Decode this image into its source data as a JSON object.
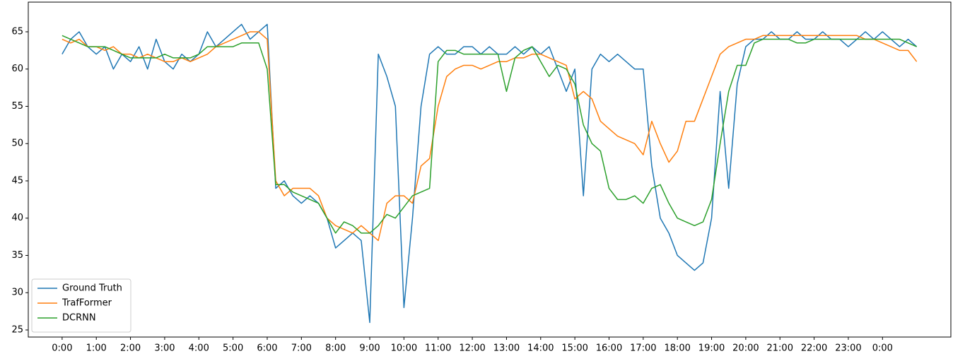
{
  "chart_data": {
    "type": "line",
    "legend": "lower left",
    "x": [
      0,
      0.25,
      0.5,
      0.75,
      1,
      1.25,
      1.5,
      1.75,
      2,
      2.25,
      2.5,
      2.75,
      3,
      3.25,
      3.5,
      3.75,
      4,
      4.25,
      4.5,
      4.75,
      5,
      5.25,
      5.5,
      5.75,
      6,
      6.25,
      6.5,
      6.75,
      7,
      7.25,
      7.5,
      7.75,
      8,
      8.25,
      8.5,
      8.75,
      9,
      9.25,
      9.5,
      9.75,
      10,
      10.25,
      10.5,
      10.75,
      11,
      11.25,
      11.5,
      11.75,
      12,
      12.25,
      12.5,
      12.75,
      13,
      13.25,
      13.5,
      13.75,
      14,
      14.25,
      14.5,
      14.75,
      15,
      15.25,
      15.5,
      15.75,
      16,
      16.25,
      16.5,
      16.75,
      17,
      17.25,
      17.5,
      17.75,
      18,
      18.25,
      18.5,
      18.75,
      19,
      19.25,
      19.5,
      19.75,
      20,
      20.25,
      20.5,
      20.75,
      21,
      21.25,
      21.5,
      21.75,
      22,
      22.25,
      22.5,
      22.75,
      23,
      23.25,
      23.5,
      23.75,
      24,
      24.25,
      24.5,
      24.75,
      25
    ],
    "xlim": [
      -0.99,
      26.0
    ],
    "xticks": [
      {
        "value": 0,
        "label": "0:00"
      },
      {
        "value": 1,
        "label": "1:00"
      },
      {
        "value": 2,
        "label": "2:00"
      },
      {
        "value": 3,
        "label": "3:00"
      },
      {
        "value": 4,
        "label": "4:00"
      },
      {
        "value": 5,
        "label": "5:00"
      },
      {
        "value": 6,
        "label": "6:00"
      },
      {
        "value": 7,
        "label": "7:00"
      },
      {
        "value": 8,
        "label": "8:00"
      },
      {
        "value": 9,
        "label": "9:00"
      },
      {
        "value": 10,
        "label": "10:00"
      },
      {
        "value": 11,
        "label": "11:00"
      },
      {
        "value": 12,
        "label": "12:00"
      },
      {
        "value": 13,
        "label": "13:00"
      },
      {
        "value": 14,
        "label": "14:00"
      },
      {
        "value": 15,
        "label": "15:00"
      },
      {
        "value": 16,
        "label": "16:00"
      },
      {
        "value": 17,
        "label": "17:00"
      },
      {
        "value": 18,
        "label": "18:00"
      },
      {
        "value": 19,
        "label": "19:00"
      },
      {
        "value": 20,
        "label": "20:00"
      },
      {
        "value": 21,
        "label": "21:00"
      },
      {
        "value": 22,
        "label": "22:00"
      },
      {
        "value": 23,
        "label": "23:00"
      },
      {
        "value": 24,
        "label": "0:00"
      }
    ],
    "ylim": [
      24.05,
      68.98
    ],
    "yticks": [
      25,
      30,
      35,
      40,
      45,
      50,
      55,
      60,
      65
    ],
    "series": [
      {
        "name": "Ground Truth",
        "color": "#1f77b4",
        "values": [
          62,
          64,
          65,
          63,
          62,
          63,
          60,
          62,
          61,
          63,
          60,
          64,
          61,
          60,
          62,
          61,
          62,
          65,
          63,
          64,
          65,
          66,
          64,
          65,
          66,
          44,
          45,
          43,
          42,
          43,
          42,
          40,
          36,
          37,
          38,
          37,
          26,
          62,
          59,
          55,
          28,
          40,
          55,
          62,
          63,
          62,
          62,
          63,
          63,
          62,
          63,
          62,
          62,
          63,
          62,
          63,
          62,
          63,
          60,
          57,
          60,
          43,
          60,
          62,
          61,
          62,
          61,
          60,
          60,
          47,
          40,
          38,
          35,
          34,
          33,
          34,
          40,
          57,
          44,
          58,
          63,
          64,
          64,
          65,
          64,
          64,
          65,
          64,
          64,
          65,
          64,
          64,
          63,
          64,
          65,
          64,
          65,
          64,
          63,
          64,
          63
        ]
      },
      {
        "name": "TrafFormer",
        "color": "#ff7f0e",
        "values": [
          64,
          63.5,
          64,
          63,
          63,
          62.5,
          63,
          62,
          62,
          61.5,
          62,
          61.5,
          61,
          61,
          61.5,
          61,
          61.5,
          62,
          63,
          63.5,
          64,
          64.5,
          65,
          65,
          64,
          45,
          43,
          44,
          44,
          44,
          43,
          40,
          39,
          38.5,
          38,
          39,
          38,
          37,
          42,
          43,
          43,
          42,
          47,
          48,
          55,
          59,
          60,
          60.5,
          60.5,
          60,
          60.5,
          61,
          61,
          61.5,
          61.5,
          62,
          62,
          61.5,
          61,
          60.5,
          56,
          57,
          56,
          53,
          52,
          51,
          50.5,
          50,
          48.5,
          53,
          50,
          47.5,
          49,
          53,
          53,
          56,
          59,
          62,
          63,
          63.5,
          64,
          64,
          64.5,
          64.5,
          64.5,
          64.5,
          64.5,
          64.5,
          64.5,
          64.5,
          64.5,
          64.5,
          64.5,
          64.5,
          64,
          64,
          63.5,
          63,
          62.5,
          62.5,
          61
        ]
      },
      {
        "name": "DCRNN",
        "color": "#2ca02c",
        "values": [
          64.5,
          64,
          63.5,
          63,
          63,
          63,
          62.5,
          62,
          61.5,
          61.5,
          61.5,
          61.5,
          62,
          61.5,
          61.5,
          61.5,
          62,
          63,
          63,
          63,
          63,
          63.5,
          63.5,
          63.5,
          60,
          44.5,
          44.5,
          43.5,
          43,
          42.5,
          42,
          40,
          38,
          39.5,
          39,
          38,
          38,
          39,
          40.5,
          40,
          41.5,
          43,
          43.5,
          44,
          61,
          62.5,
          62.5,
          62,
          62,
          62,
          62,
          62,
          57,
          61.5,
          62.5,
          63,
          61,
          59,
          60.5,
          60,
          58,
          52.5,
          50,
          49,
          44,
          42.5,
          42.5,
          43,
          42,
          44,
          44.5,
          42,
          40,
          39.5,
          39,
          39.5,
          42.5,
          50,
          57,
          60.5,
          60.5,
          63.5,
          64,
          64,
          64,
          64,
          63.5,
          63.5,
          64,
          64,
          64,
          64,
          64,
          64,
          64,
          64,
          64,
          64,
          64,
          63.5,
          63
        ]
      }
    ]
  }
}
